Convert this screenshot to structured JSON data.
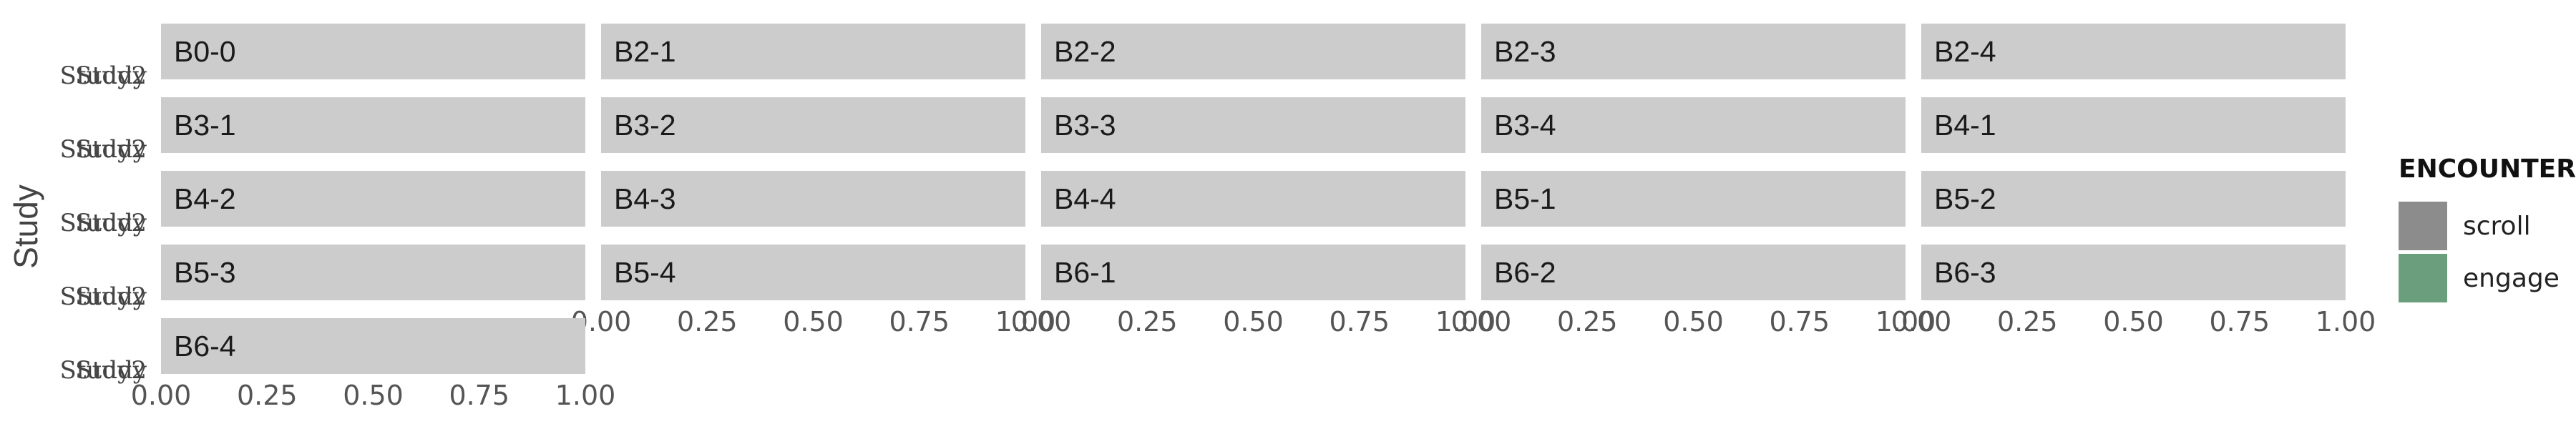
{
  "chart_data": {
    "type": "bar",
    "orientation": "horizontal",
    "faceted": true,
    "ylabel": "Study",
    "y_categories": [
      "Study",
      "Study2"
    ],
    "xlim": [
      0,
      1
    ],
    "x_ticks": [
      "0.00",
      "0.25",
      "0.50",
      "0.75",
      "1.00"
    ],
    "legend": {
      "title": "ENCOUNTER",
      "position": "right",
      "items": [
        {
          "name": "scroll",
          "color": "#8c8c8c"
        },
        {
          "name": "engage",
          "color": "#6b9e7c"
        }
      ]
    },
    "strip_color": "#cccccc",
    "grid": false,
    "panels": [
      {
        "label": "B0-0",
        "values": []
      },
      {
        "label": "B2-1",
        "values": []
      },
      {
        "label": "B2-2",
        "values": []
      },
      {
        "label": "B2-3",
        "values": []
      },
      {
        "label": "B2-4",
        "values": []
      },
      {
        "label": "B3-1",
        "values": []
      },
      {
        "label": "B3-2",
        "values": []
      },
      {
        "label": "B3-3",
        "values": []
      },
      {
        "label": "B3-4",
        "values": []
      },
      {
        "label": "B4-1",
        "values": []
      },
      {
        "label": "B4-2",
        "values": []
      },
      {
        "label": "B4-3",
        "values": []
      },
      {
        "label": "B4-4",
        "values": []
      },
      {
        "label": "B5-1",
        "values": []
      },
      {
        "label": "B5-2",
        "values": []
      },
      {
        "label": "B5-3",
        "values": []
      },
      {
        "label": "B5-4",
        "values": []
      },
      {
        "label": "B6-1",
        "values": []
      },
      {
        "label": "B6-2",
        "values": []
      },
      {
        "label": "B6-3",
        "values": []
      },
      {
        "label": "B6-4",
        "values": []
      }
    ]
  }
}
